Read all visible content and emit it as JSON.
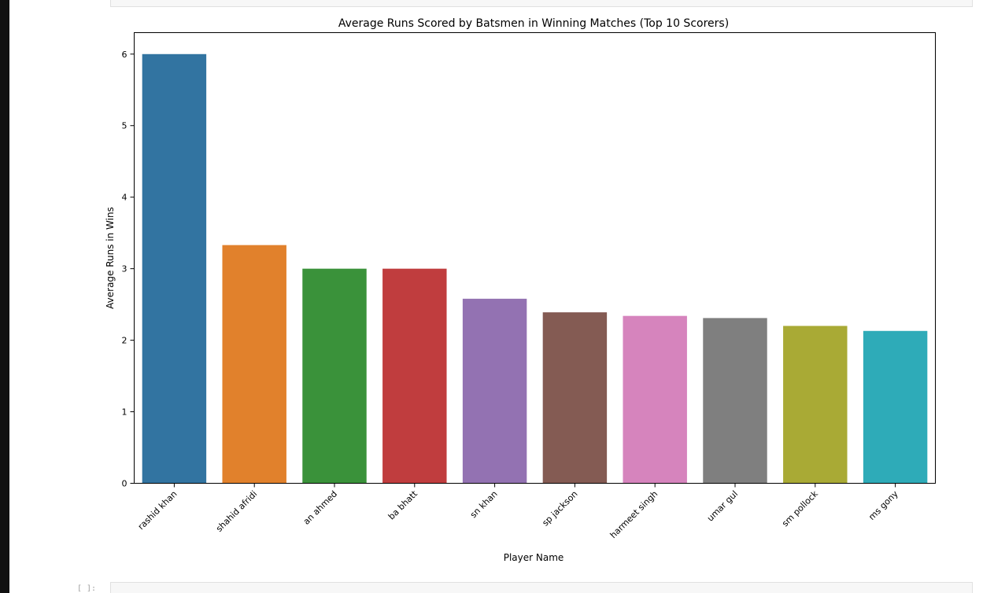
{
  "prompt_glyph": "[ ]:",
  "chart_data": {
    "type": "bar",
    "title": "Average Runs Scored by Batsmen in Winning Matches (Top 10 Scorers)",
    "xlabel": "Player Name",
    "ylabel": "Average Runs in Wins",
    "categories": [
      "rashid khan",
      "shahid afridi",
      "an ahmed",
      "ba bhatt",
      "sn khan",
      "sp jackson",
      "harmeet singh",
      "umar gul",
      "sm pollock",
      "ms gony"
    ],
    "values": [
      6.0,
      3.33,
      3.0,
      3.0,
      2.58,
      2.39,
      2.34,
      2.31,
      2.2,
      2.13
    ],
    "colors": [
      "#3274a1",
      "#e1812c",
      "#3a923a",
      "#c03d3e",
      "#9372b2",
      "#845b53",
      "#d684bd",
      "#7f7f7f",
      "#a9aa35",
      "#2eabb8"
    ],
    "ylim": [
      0,
      6.3
    ],
    "yticks": [
      0,
      1,
      2,
      3,
      4,
      5,
      6
    ],
    "grid": false,
    "legend": "none"
  }
}
